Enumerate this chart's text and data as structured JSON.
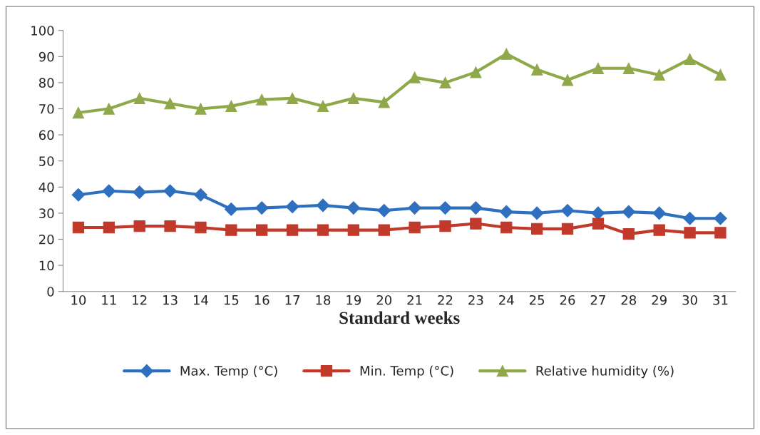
{
  "chart_data": {
    "type": "line",
    "xlabel": "Standard weeks",
    "categories": [
      "10",
      "11",
      "12",
      "13",
      "14",
      "15",
      "16",
      "17",
      "18",
      "19",
      "20",
      "21",
      "22",
      "23",
      "24",
      "25",
      "26",
      "27",
      "28",
      "29",
      "30",
      "31"
    ],
    "series": [
      {
        "name": "Max. Temp (°C)",
        "color": "#2e6fbf",
        "marker": "diamond",
        "values": [
          37,
          38.5,
          38,
          38.5,
          37,
          31.5,
          32,
          32.5,
          33,
          32,
          31,
          32,
          32,
          32,
          30.5,
          30,
          31,
          30,
          30.5,
          30,
          28,
          28
        ]
      },
      {
        "name": "Min. Temp (°C)",
        "color": "#c0392b",
        "marker": "square",
        "values": [
          24.5,
          24.5,
          25,
          25,
          24.5,
          23.5,
          23.5,
          23.5,
          23.5,
          23.5,
          23.5,
          24.5,
          25,
          26,
          24.5,
          24,
          24,
          26,
          22,
          23.5,
          22.5,
          22.5
        ]
      },
      {
        "name": "Relative humidity (%)",
        "color": "#8fa84a",
        "marker": "triangle",
        "values": [
          68.5,
          70,
          74,
          72,
          70,
          71,
          73.5,
          74,
          71,
          74,
          72.5,
          82,
          80,
          84,
          91,
          85,
          81,
          85.5,
          85.5,
          83,
          89,
          83
        ]
      }
    ],
    "ylim": [
      0,
      100
    ],
    "yticks": [
      0,
      10,
      20,
      30,
      40,
      50,
      60,
      70,
      80,
      90,
      100
    ],
    "grid": false,
    "legend": "bottom",
    "line_style": "solid"
  }
}
